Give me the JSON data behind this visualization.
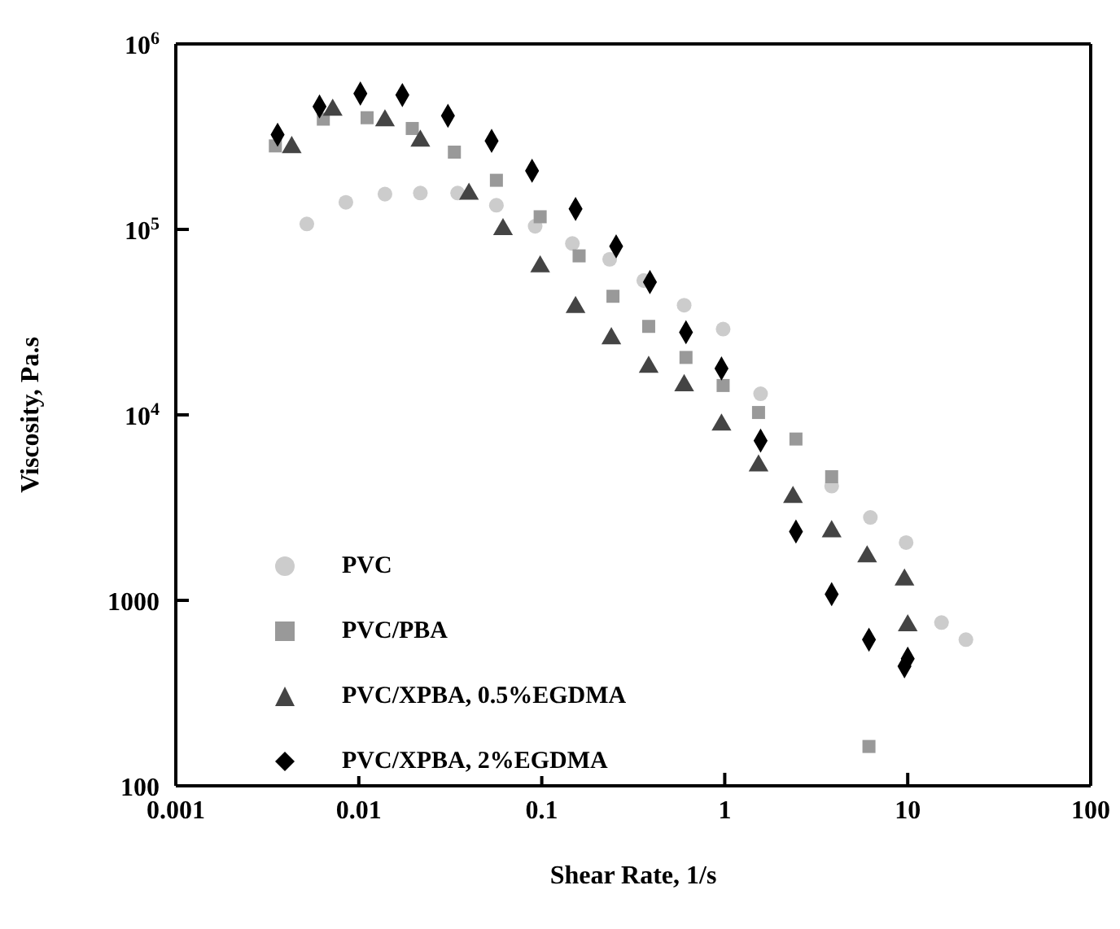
{
  "chart_data": {
    "type": "scatter",
    "xlabel": "Shear Rate, 1/s",
    "ylabel": "Viscosity, Pa.s",
    "log": "xy",
    "legend": "bottom left",
    "xlim": [
      0.001,
      100
    ],
    "xticks": [
      0.001,
      0.01,
      0.1,
      1,
      10,
      100
    ],
    "ylim": [
      100,
      1000000
    ],
    "yticks": [
      100,
      1000,
      {
        "value": 10000,
        "label": "10$^{4}$"
      },
      {
        "value": 100000,
        "label": "10$^{5}$"
      },
      {
        "value": 1000000,
        "label": "10$^{6}$"
      }
    ],
    "series": [
      {
        "name": "PVC",
        "color": "#cccccc",
        "marker": "circle",
        "x": [
          0.0052,
          0.0085,
          0.0139,
          0.0217,
          0.0347,
          0.0565,
          0.092,
          0.147,
          0.235,
          0.361,
          0.6,
          0.98,
          1.57,
          3.84,
          6.25,
          9.8,
          15.3,
          20.8
        ],
        "values": [
          107000,
          140000,
          155000,
          157000,
          157000,
          135000,
          104000,
          84000,
          69000,
          53000,
          39000,
          29000,
          13000,
          4130,
          2800,
          2050,
          759,
          614
        ]
      },
      {
        "name": "PVC/PBA",
        "color": "#999999",
        "marker": "square",
        "x": [
          0.0035,
          0.0064,
          0.0111,
          0.0196,
          0.0333,
          0.0565,
          0.098,
          0.16,
          0.245,
          0.384,
          0.614,
          0.98,
          1.53,
          2.45,
          3.84,
          6.14
        ],
        "values": [
          282000,
          393000,
          400000,
          350000,
          261000,
          184000,
          117000,
          72000,
          43600,
          30000,
          20400,
          14400,
          10300,
          7410,
          4640,
          163
        ]
      },
      {
        "name": "PVC/XPBA, 0.5%EGDMA",
        "color": "#444444",
        "marker": "triangle",
        "x": [
          0.0043,
          0.0072,
          0.0139,
          0.0217,
          0.04,
          0.0614,
          0.098,
          0.153,
          0.24,
          0.384,
          0.6,
          0.96,
          1.53,
          2.36,
          3.84,
          6.0,
          9.6,
          10
        ],
        "values": [
          277000,
          440000,
          386000,
          300000,
          155000,
          100000,
          63000,
          38000,
          25800,
          18100,
          14400,
          8830,
          5320,
          3600,
          2350,
          1720,
          1290,
          731
        ]
      },
      {
        "name": "PVC/XPBA, 2%EGDMA",
        "color": "#000000",
        "marker": "diamond",
        "x": [
          0.0036,
          0.0061,
          0.0102,
          0.0173,
          0.0307,
          0.0532,
          0.0885,
          0.153,
          0.255,
          0.39,
          0.614,
          0.96,
          1.57,
          2.45,
          3.84,
          6.14,
          10,
          9.6
        ],
        "values": [
          324000,
          460000,
          540000,
          530000,
          410000,
          300000,
          207000,
          129000,
          81000,
          52000,
          27900,
          17800,
          7260,
          2350,
          1080,
          614,
          485,
          441
        ]
      }
    ]
  }
}
